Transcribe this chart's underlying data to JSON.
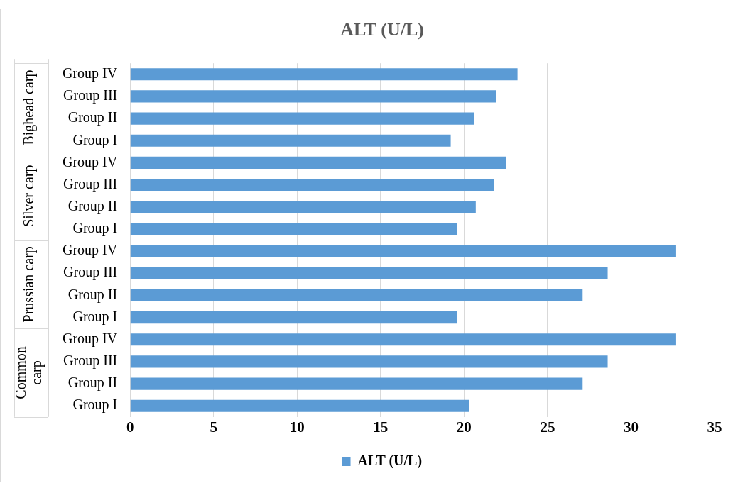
{
  "chart_data": {
    "type": "bar",
    "orientation": "horizontal",
    "title": "ALT (U/L)",
    "categories": [
      "Group IV",
      "Group III",
      "Group II",
      "Group I",
      "Group IV",
      "Group III",
      "Group II",
      "Group I",
      "Group IV",
      "Group III",
      "Group II",
      "Group I",
      "Group IV",
      "Group III",
      "Group II",
      "Group I"
    ],
    "series": [
      {
        "name": "ALT (U/L)",
        "color": "#5b9bd5",
        "values": [
          23.2,
          21.9,
          20.6,
          19.2,
          22.5,
          21.8,
          20.7,
          19.6,
          32.7,
          28.6,
          27.1,
          19.6,
          32.7,
          28.6,
          27.1,
          20.3
        ]
      }
    ],
    "annotations": [
      "Bighead carp",
      "Silver carp",
      "Prussian carp",
      "Common carp"
    ],
    "xlim": [
      0,
      35
    ],
    "xticks": [
      0,
      5,
      10,
      15,
      20,
      25,
      30,
      35
    ],
    "grid": "x",
    "legend": "bottom"
  }
}
